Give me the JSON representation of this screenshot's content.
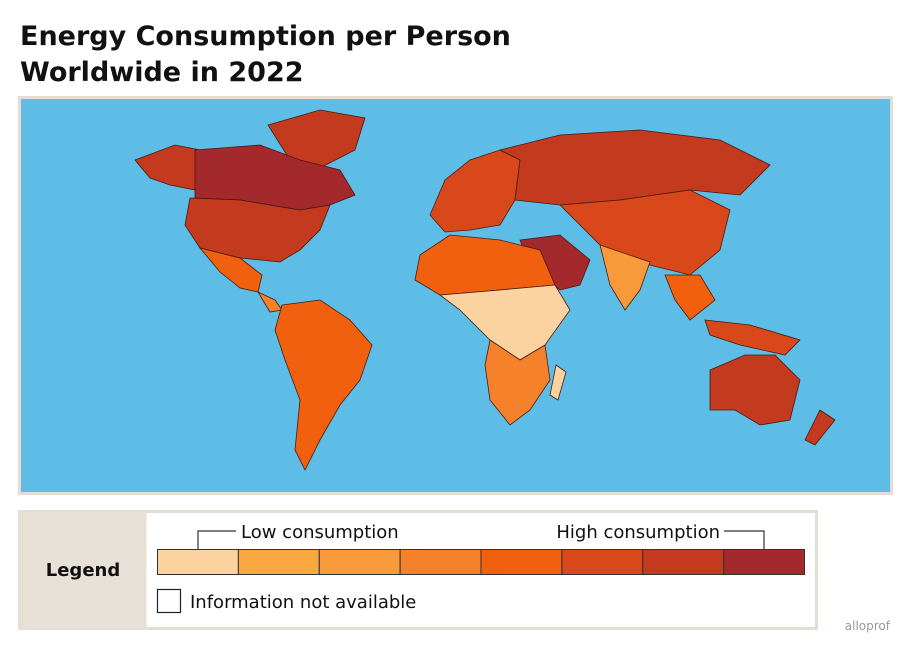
{
  "header": {
    "title_lines": [
      "Energy Consumption per Person",
      "Worldwide in 2022"
    ]
  },
  "legend": {
    "heading": "Legend",
    "low": "Low consumption",
    "high": "High consumption",
    "not_available": "Information not available",
    "colors": [
      "#fbd3a0",
      "#f9a73e",
      "#f89a3a",
      "#f5822a",
      "#f0600e",
      "#d9481a",
      "#c33a1f",
      "#a3292c"
    ]
  },
  "footer": {
    "brand": "alloprof"
  }
}
